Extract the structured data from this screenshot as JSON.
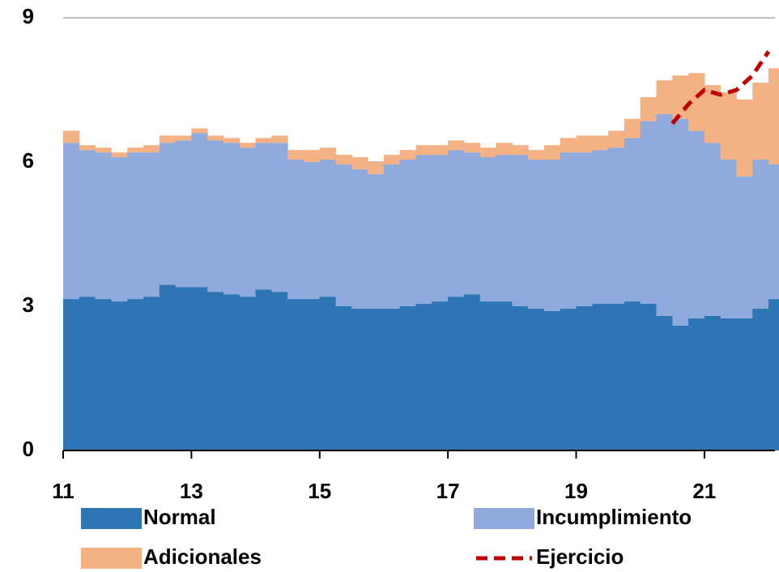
{
  "chart_data": {
    "type": "bar",
    "stacked": true,
    "x": [
      11,
      11.25,
      11.5,
      11.75,
      12,
      12.25,
      12.5,
      12.75,
      13,
      13.25,
      13.5,
      13.75,
      14,
      14.25,
      14.5,
      14.75,
      15,
      15.25,
      15.5,
      15.75,
      16,
      16.25,
      16.5,
      16.75,
      17,
      17.25,
      17.5,
      17.75,
      18,
      18.25,
      18.5,
      18.75,
      19,
      19.25,
      19.5,
      19.75,
      20,
      20.25,
      20.5,
      20.75,
      21,
      21.25,
      21.5,
      21.75,
      22
    ],
    "bar_width": 0.25,
    "series": [
      {
        "name": "Normal",
        "color": "#2e75b6",
        "values": [
          3.15,
          3.2,
          3.15,
          3.1,
          3.15,
          3.2,
          3.45,
          3.4,
          3.4,
          3.3,
          3.25,
          3.2,
          3.35,
          3.3,
          3.15,
          3.15,
          3.2,
          3.0,
          2.95,
          2.95,
          2.95,
          3.0,
          3.05,
          3.1,
          3.2,
          3.25,
          3.1,
          3.1,
          3.0,
          2.95,
          2.9,
          2.95,
          3.0,
          3.05,
          3.05,
          3.1,
          3.05,
          2.8,
          2.6,
          2.75,
          2.8,
          2.75,
          2.75,
          2.95,
          3.15
        ]
      },
      {
        "name": "Incumplimiento",
        "color": "#8faadc",
        "values": [
          3.25,
          3.05,
          3.05,
          3.0,
          3.05,
          3.0,
          2.95,
          3.05,
          3.2,
          3.15,
          3.15,
          3.1,
          3.05,
          3.1,
          2.9,
          2.85,
          2.85,
          2.95,
          2.9,
          2.8,
          3.0,
          3.05,
          3.1,
          3.05,
          3.05,
          2.95,
          3.0,
          3.05,
          3.15,
          3.1,
          3.15,
          3.25,
          3.2,
          3.2,
          3.25,
          3.4,
          3.8,
          4.2,
          4.3,
          3.9,
          3.6,
          3.3,
          2.95,
          3.1,
          2.8
        ]
      },
      {
        "name": "Adicionales",
        "color": "#f4b183",
        "values": [
          0.25,
          0.1,
          0.1,
          0.1,
          0.1,
          0.15,
          0.15,
          0.1,
          0.1,
          0.1,
          0.1,
          0.1,
          0.1,
          0.15,
          0.2,
          0.25,
          0.25,
          0.2,
          0.25,
          0.25,
          0.2,
          0.2,
          0.2,
          0.2,
          0.2,
          0.2,
          0.2,
          0.25,
          0.2,
          0.2,
          0.3,
          0.3,
          0.35,
          0.3,
          0.35,
          0.4,
          0.5,
          0.7,
          0.9,
          1.2,
          1.2,
          1.4,
          1.6,
          1.6,
          2.0
        ]
      }
    ],
    "line": {
      "name": "Ejercicio",
      "color": "#c00000",
      "x": [
        20.5,
        20.75,
        21,
        21.25,
        21.5,
        21.75,
        22
      ],
      "values": [
        6.8,
        7.2,
        7.5,
        7.4,
        7.5,
        7.8,
        8.3
      ]
    },
    "xlim": [
      11,
      22.1
    ],
    "xticks": [
      11,
      13,
      15,
      17,
      19,
      21
    ],
    "ylim": [
      0,
      9
    ],
    "yticks": [
      0,
      3,
      6,
      9
    ],
    "grid": true
  }
}
